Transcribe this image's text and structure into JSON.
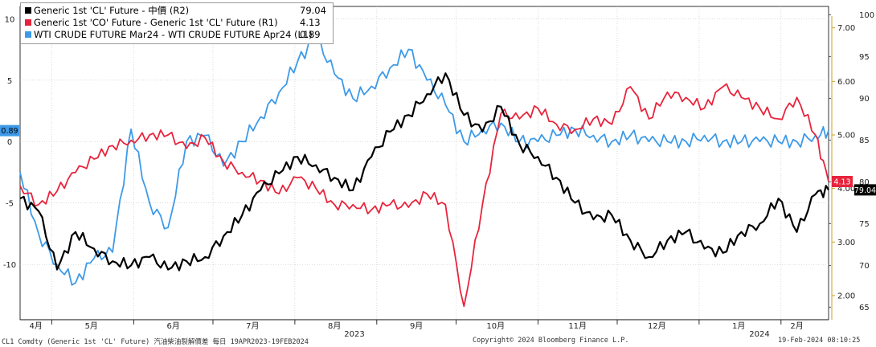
{
  "legend": {
    "items": [
      {
        "label": "Generic 1st 'CL' Future - 中價 (R2)",
        "value": "79.04",
        "color": "#000000"
      },
      {
        "label": "Generic 1st 'CO' Future - Generic 1st 'CL' Future (R1)",
        "value": "4.13",
        "color": "#e8243c"
      },
      {
        "label": "WTI CRUDE FUTURE Mar24 - WTI CRUDE FUTURE Apr24 (L1)",
        "value": "0.89",
        "color": "#3d9ae8"
      }
    ]
  },
  "footer": {
    "left": "CL1 Comdty (Generic 1st 'CL' Future) 汽油柴油裂解價差  每日 19APR2023-19FEB2024",
    "center": "Copyright© 2024 Bloomberg Finance L.P.",
    "right": "19-Feb-2024 08:10:25"
  },
  "axes": {
    "left_ticks": [
      "10",
      "5",
      "0",
      "-5",
      "-10"
    ],
    "r1_ticks": [
      "7.00",
      "6.00",
      "5.00",
      "4.00",
      "3.00",
      "2.00"
    ],
    "r2_ticks": [
      "100",
      "95",
      "90",
      "85",
      "80",
      "75",
      "70",
      "65"
    ],
    "months": [
      "4月",
      "5月",
      "6月",
      "7月",
      "8月",
      "9月",
      "10月",
      "11月",
      "12月",
      "1月",
      "2月"
    ],
    "years": [
      "2023",
      "2024"
    ]
  },
  "tags": {
    "left": "0.89",
    "r1": "4.13",
    "r2": "79.04"
  },
  "chart_data": {
    "type": "line",
    "x_range": [
      "2023-04-19",
      "2024-02-19"
    ],
    "x": [
      "2023-04-19",
      "2023-04-26",
      "2023-05-03",
      "2023-05-10",
      "2023-05-17",
      "2023-05-24",
      "2023-05-31",
      "2023-06-07",
      "2023-06-14",
      "2023-06-21",
      "2023-06-28",
      "2023-07-05",
      "2023-07-12",
      "2023-07-19",
      "2023-07-26",
      "2023-08-02",
      "2023-08-09",
      "2023-08-16",
      "2023-08-23",
      "2023-08-30",
      "2023-09-06",
      "2023-09-13",
      "2023-09-20",
      "2023-09-27",
      "2023-10-04",
      "2023-10-11",
      "2023-10-18",
      "2023-10-25",
      "2023-11-01",
      "2023-11-08",
      "2023-11-15",
      "2023-11-22",
      "2023-11-29",
      "2023-12-06",
      "2023-12-13",
      "2023-12-20",
      "2023-12-27",
      "2024-01-03",
      "2024-01-10",
      "2024-01-17",
      "2024-01-24",
      "2024-01-31",
      "2024-02-07",
      "2024-02-14",
      "2024-02-19"
    ],
    "series": [
      {
        "name": "Generic 1st 'CL' Future - 中價 (R2)",
        "axis": "R2",
        "ylim": [
          63.5,
          101
        ],
        "values": [
          78.0,
          76.5,
          69.5,
          74.0,
          72.0,
          70.5,
          70.0,
          71.0,
          69.5,
          70.5,
          71.0,
          73.5,
          76.0,
          79.0,
          81.0,
          83.0,
          82.0,
          80.5,
          79.0,
          83.0,
          86.0,
          88.0,
          90.5,
          93.0,
          88.0,
          86.0,
          89.0,
          84.5,
          83.0,
          80.5,
          77.5,
          75.5,
          76.0,
          73.0,
          71.0,
          73.0,
          74.0,
          72.0,
          71.5,
          74.0,
          75.0,
          78.0,
          74.0,
          78.5,
          79.04
        ]
      },
      {
        "name": "Generic 1st 'CO' Future - Generic 1st 'CL' Future (R1)",
        "axis": "R1",
        "ylim": [
          1.55,
          7.4
        ],
        "values": [
          4.05,
          3.7,
          3.95,
          4.3,
          4.55,
          4.8,
          4.9,
          5.0,
          5.0,
          4.75,
          4.95,
          4.5,
          4.3,
          4.15,
          3.9,
          4.2,
          4.0,
          3.7,
          3.7,
          3.6,
          3.7,
          3.65,
          3.9,
          3.7,
          1.8,
          3.7,
          5.4,
          5.3,
          5.5,
          5.2,
          5.1,
          5.3,
          5.2,
          5.9,
          5.3,
          5.8,
          5.7,
          5.5,
          5.9,
          5.7,
          5.5,
          5.3,
          5.7,
          5.0,
          4.13
        ]
      },
      {
        "name": "WTI CRUDE FUTURE Mar24 - WTI CRUDE FUTURE Apr24 (L1)",
        "axis": "L1",
        "ylim": [
          -14.5,
          11
        ],
        "values": [
          -2.5,
          -7.5,
          -10.0,
          -11.5,
          -9.5,
          -9.0,
          1.0,
          -5.0,
          -7.0,
          0.0,
          0.5,
          -2.0,
          0.0,
          2.0,
          4.0,
          6.5,
          8.5,
          5.5,
          3.5,
          4.5,
          6.0,
          7.5,
          5.0,
          3.0,
          0.0,
          1.0,
          1.5,
          0.0,
          0.0,
          0.5,
          1.0,
          0.5,
          0.0,
          0.5,
          0.0,
          0.0,
          0.0,
          0.5,
          0.0,
          0.0,
          0.0,
          0.0,
          0.0,
          0.5,
          0.89
        ]
      }
    ]
  }
}
